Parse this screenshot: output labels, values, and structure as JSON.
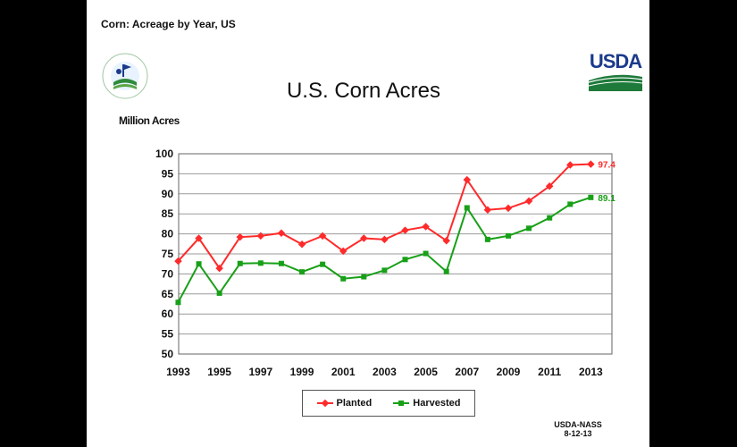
{
  "slide": {
    "title": "Corn: Acreage by Year, US",
    "source_line1": "USDA-NASS",
    "source_line2": "8-12-13",
    "usda_logo_text": "USDA",
    "seal_icon": "agriculture-counts-seal-icon"
  },
  "colors": {
    "planted": "#ff2a2a",
    "harvested": "#18a018",
    "usda_blue": "#1b3a8c",
    "usda_green": "#1e7a3a"
  },
  "chart_data": {
    "type": "line",
    "title": "U.S. Corn Acres",
    "xlabel": "",
    "ylabel": "Million Acres",
    "ylim": [
      50,
      100
    ],
    "yticks": [
      50,
      55,
      60,
      65,
      70,
      75,
      80,
      85,
      90,
      95,
      100
    ],
    "xlim": [
      1993,
      2014
    ],
    "xticks": [
      1993,
      1995,
      1997,
      1999,
      2001,
      2003,
      2005,
      2007,
      2009,
      2011,
      2013
    ],
    "grid": true,
    "legend_position": "bottom",
    "x": [
      1993,
      1994,
      1995,
      1996,
      1997,
      1998,
      1999,
      2000,
      2001,
      2002,
      2003,
      2004,
      2005,
      2006,
      2007,
      2008,
      2009,
      2010,
      2011,
      2012,
      2013
    ],
    "series": [
      {
        "name": "Planted",
        "marker": "diamond",
        "end_label": "97.4",
        "values": [
          73.2,
          78.9,
          71.4,
          79.2,
          79.5,
          80.2,
          77.4,
          79.5,
          75.7,
          78.9,
          78.6,
          80.9,
          81.8,
          78.3,
          93.5,
          86.0,
          86.4,
          88.2,
          91.9,
          97.2,
          97.4
        ]
      },
      {
        "name": "Harvested",
        "marker": "square",
        "end_label": "89.1",
        "values": [
          62.9,
          72.5,
          65.2,
          72.6,
          72.7,
          72.6,
          70.5,
          72.4,
          68.8,
          69.3,
          70.9,
          73.6,
          75.1,
          70.6,
          86.5,
          78.6,
          79.5,
          81.4,
          84.0,
          87.4,
          89.1
        ]
      }
    ]
  }
}
